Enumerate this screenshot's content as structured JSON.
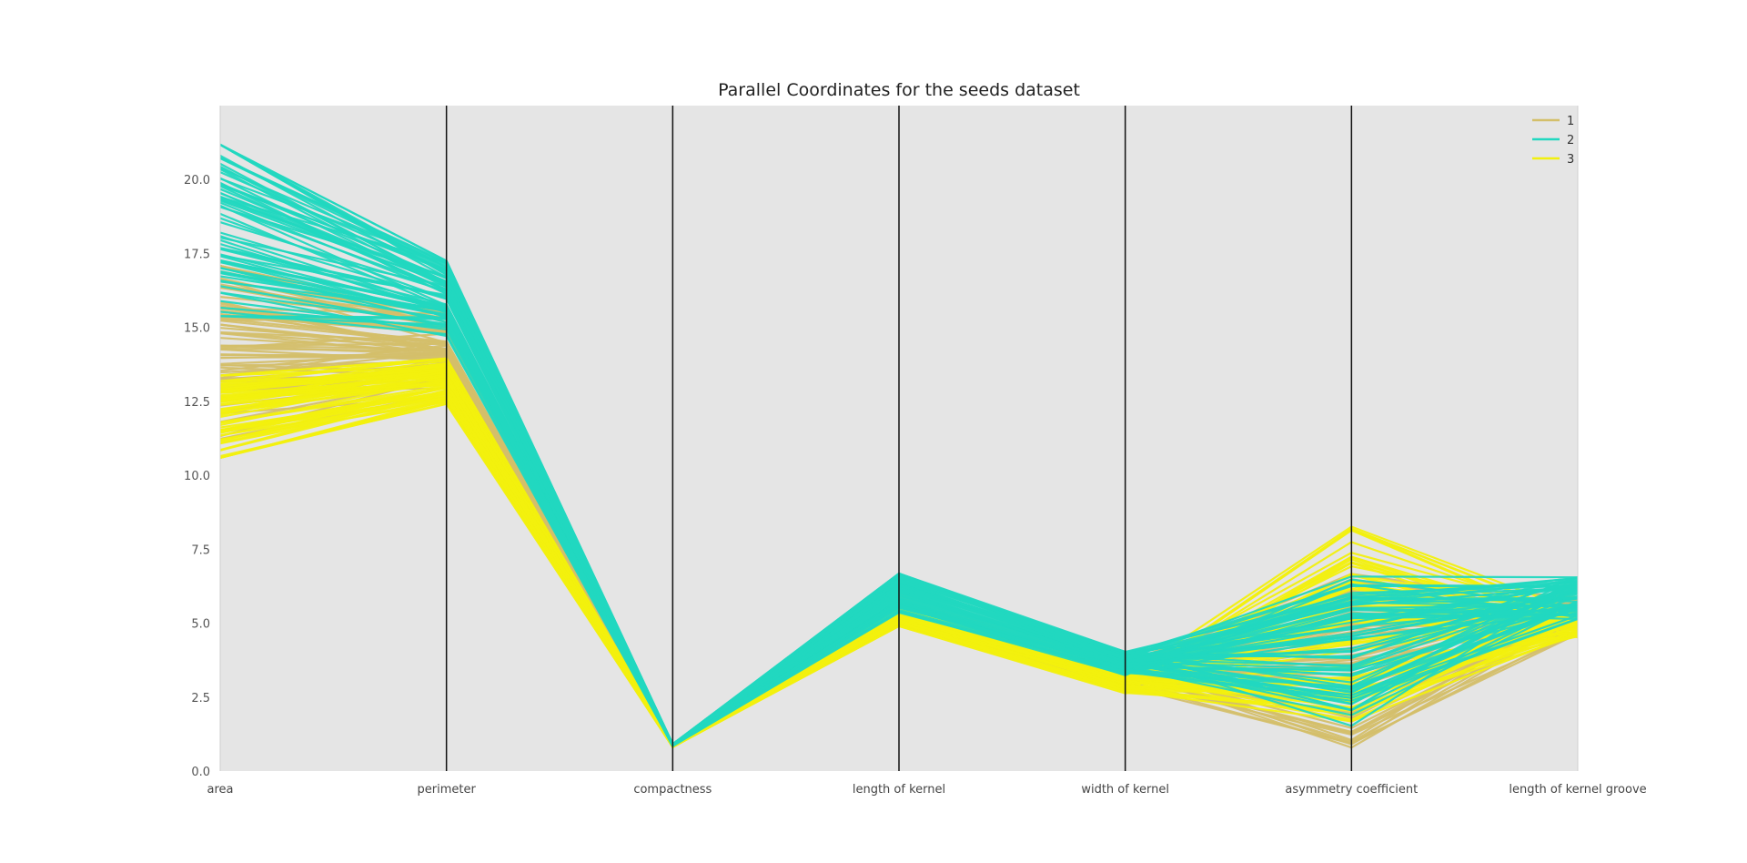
{
  "chart_data": {
    "type": "line",
    "subtype": "parallel-coordinates",
    "title": "Parallel Coordinates for the seeds dataset",
    "axes": [
      "area",
      "perimeter",
      "compactness",
      "length of kernel",
      "width of kernel",
      "asymmetry coefficient",
      "length of kernel groove"
    ],
    "ylim": [
      0.0,
      22.5
    ],
    "yticks": [
      "0.0",
      "2.5",
      "5.0",
      "7.5",
      "10.0",
      "12.5",
      "15.0",
      "17.5",
      "20.0"
    ],
    "grid": false,
    "background": "#e5e5e5",
    "legend": {
      "position": "top-right",
      "entries": [
        "1",
        "2",
        "3"
      ]
    },
    "colors": {
      "1": "#d4bf6a",
      "2": "#22d8c0",
      "3": "#f2f00e",
      "axis_line": "#111111"
    },
    "series": [
      {
        "name": "1",
        "color": "#d4bf6a",
        "ranges": {
          "min": [
            11.23,
            12.63,
            0.808,
            4.9,
            2.85,
            0.77,
            4.52
          ],
          "max": [
            17.08,
            15.46,
            0.918,
            6.05,
            3.68,
            6.69,
            5.88
          ]
        },
        "typical": [
          14.3,
          14.3,
          0.88,
          5.51,
          3.24,
          2.57,
          5.09
        ]
      },
      {
        "name": "2",
        "color": "#22d8c0",
        "ranges": {
          "min": [
            15.38,
            14.66,
            0.845,
            5.36,
            3.23,
            1.47,
            5.14
          ],
          "max": [
            21.18,
            17.25,
            0.911,
            6.68,
            4.03,
            6.68,
            6.55
          ]
        },
        "typical": [
          18.3,
          16.1,
          0.884,
          6.15,
          3.68,
          3.64,
          6.02
        ]
      },
      {
        "name": "3",
        "color": "#f2f00e",
        "ranges": {
          "min": [
            10.59,
            12.41,
            0.808,
            4.9,
            2.63,
            1.66,
            4.52
          ],
          "max": [
            13.37,
            13.95,
            0.898,
            5.54,
            3.23,
            8.46,
            5.49
          ]
        },
        "typical": [
          11.9,
          13.2,
          0.849,
          5.23,
          2.85,
          4.79,
          5.12
        ]
      }
    ]
  }
}
